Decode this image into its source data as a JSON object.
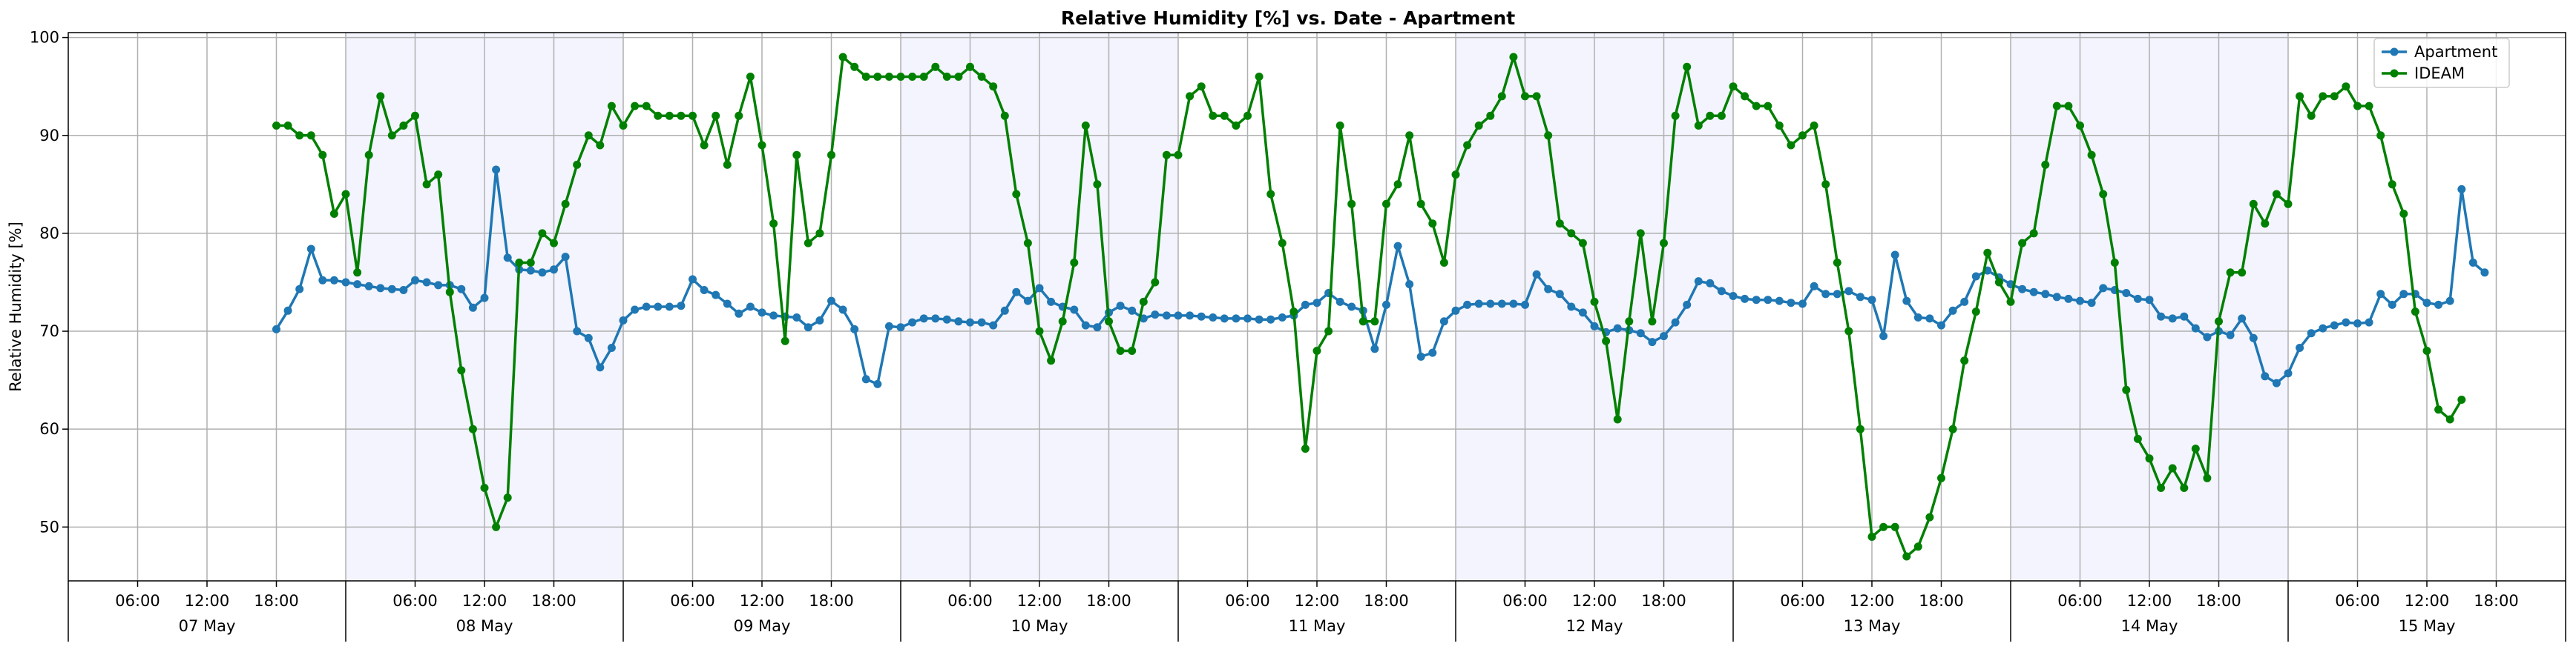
{
  "chart_data": {
    "type": "line",
    "title": "Relative Humidity [%] vs. Date - Apartment",
    "xlabel": "",
    "ylabel": "Relative Humidity [%]",
    "ylim": [
      44.5,
      100.5
    ],
    "yticks": [
      50,
      60,
      70,
      80,
      90,
      100
    ],
    "xlim_hours": [
      0,
      216
    ],
    "day_labels": [
      "07 May",
      "08 May",
      "09 May",
      "10 May",
      "11 May",
      "12 May",
      "13 May",
      "14 May",
      "15 May"
    ],
    "hour_tick_labels": [
      "06:00",
      "12:00",
      "18:00"
    ],
    "grid": true,
    "legend_position": "top-right",
    "series": [
      {
        "name": "Apartment",
        "color": "#1f77b4",
        "start": "07 May 18:00",
        "step_hours": 1,
        "values": [
          70.2,
          72.1,
          74.3,
          78.4,
          75.2,
          75.2,
          75.0,
          74.8,
          74.6,
          74.4,
          74.3,
          74.2,
          75.2,
          75.0,
          74.7,
          74.7,
          74.3,
          72.4,
          73.4,
          86.5,
          77.5,
          76.3,
          76.2,
          76.0,
          76.3,
          77.6,
          70.0,
          69.3,
          66.3,
          68.3,
          71.1,
          72.2,
          72.5,
          72.5,
          72.5,
          72.6,
          75.3,
          74.2,
          73.7,
          72.8,
          71.8,
          72.5,
          71.9,
          71.6,
          71.5,
          71.4,
          70.4,
          71.1,
          73.1,
          72.2,
          70.2,
          65.1,
          64.6,
          70.5,
          70.4,
          70.9,
          71.3,
          71.3,
          71.2,
          71.0,
          70.9,
          70.9,
          70.6,
          72.1,
          74.0,
          73.1,
          74.4,
          73.0,
          72.5,
          72.2,
          70.6,
          70.4,
          71.9,
          72.6,
          72.1,
          71.3,
          71.7,
          71.6,
          71.6,
          71.6,
          71.5,
          71.4,
          71.3,
          71.3,
          71.3,
          71.2,
          71.2,
          71.4,
          71.6,
          72.7,
          72.9,
          73.9,
          73.0,
          72.5,
          72.1,
          68.2,
          72.7,
          78.7,
          74.8,
          67.4,
          67.8,
          71.0,
          72.1,
          72.7,
          72.8,
          72.8,
          72.8,
          72.8,
          72.7,
          75.8,
          74.3,
          73.8,
          72.5,
          71.9,
          70.5,
          69.9,
          70.3,
          70.1,
          69.8,
          68.9,
          69.5,
          70.9,
          72.7,
          75.1,
          74.9,
          74.1,
          73.6,
          73.3,
          73.2,
          73.2,
          73.1,
          72.9,
          72.8,
          74.6,
          73.8,
          73.8,
          74.1,
          73.5,
          73.2,
          69.5,
          77.8,
          73.1,
          71.4,
          71.3,
          70.6,
          72.1,
          73.0,
          75.6,
          76.2,
          75.5,
          74.8,
          74.3,
          74.0,
          73.8,
          73.5,
          73.3,
          73.1,
          72.9,
          74.4,
          74.2,
          73.9,
          73.3,
          73.2,
          71.5,
          71.3,
          71.5,
          70.3,
          69.4,
          70.0,
          69.6,
          71.3,
          69.3,
          65.4,
          64.7,
          65.7,
          68.3,
          69.8,
          70.3,
          70.6,
          70.9,
          70.8,
          70.9,
          73.8,
          72.7,
          73.8,
          73.8,
          72.9,
          72.7,
          73.1,
          84.5,
          77.0,
          76.0
        ]
      },
      {
        "name": "IDEAM",
        "color": "#008000",
        "start": "07 May 18:00",
        "step_hours": 1,
        "values": [
          91,
          91,
          90,
          90,
          88,
          82,
          84,
          76,
          88,
          94,
          90,
          91,
          92,
          85,
          86,
          74,
          66,
          60,
          54,
          50,
          53,
          77,
          77,
          80,
          79,
          83,
          87,
          90,
          89,
          93,
          91,
          93,
          93,
          92,
          92,
          92,
          92,
          89,
          92,
          87,
          92,
          96,
          89,
          81,
          69,
          88,
          79,
          80,
          88,
          98,
          97,
          96,
          96,
          96,
          96,
          96,
          96,
          97,
          96,
          96,
          97,
          96,
          95,
          92,
          84,
          79,
          70,
          67,
          71,
          77,
          91,
          85,
          71,
          68,
          68,
          73,
          75,
          88,
          88,
          94,
          95,
          92,
          92,
          91,
          92,
          96,
          84,
          79,
          72,
          58,
          68,
          70,
          91,
          83,
          71,
          71,
          83,
          85,
          90,
          83,
          81,
          77,
          86,
          89,
          91,
          92,
          94,
          98,
          94,
          94,
          90,
          81,
          80,
          79,
          73,
          69,
          61,
          71,
          80,
          71,
          79,
          92,
          97,
          91,
          92,
          92,
          95,
          94,
          93,
          93,
          91,
          89,
          90,
          91,
          85,
          77,
          70,
          60,
          49,
          50,
          50,
          47,
          48,
          51,
          55,
          60,
          67,
          72,
          78,
          75,
          73,
          79,
          80,
          87,
          93,
          93,
          91,
          88,
          84,
          77,
          64,
          59,
          57,
          54,
          56,
          54,
          58,
          55,
          71,
          76,
          76,
          83,
          81,
          84,
          83,
          94,
          92,
          94,
          94,
          95,
          93,
          93,
          90,
          85,
          82,
          72,
          68,
          62,
          61,
          63
        ]
      }
    ]
  }
}
